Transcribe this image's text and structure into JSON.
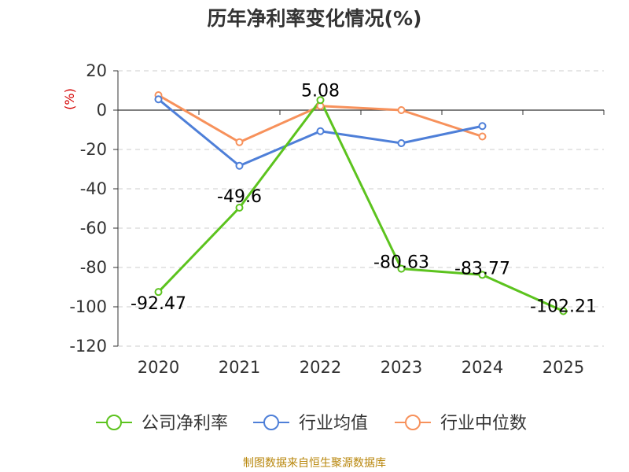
{
  "chart_data": {
    "type": "line",
    "title": "历年净利率变化情况(%)",
    "ylabel": "(%)",
    "xlabel": "",
    "ylim": [
      -120,
      20
    ],
    "yticks": [
      20,
      0,
      -20,
      -40,
      -60,
      -80,
      -100,
      -120
    ],
    "categories": [
      "2020",
      "2021",
      "2022",
      "2023",
      "2024",
      "2025"
    ],
    "grid": true,
    "legend_position": "bottom",
    "series": [
      {
        "name": "公司净利率",
        "color": "#5cc31e",
        "values": [
          -92.47,
          -49.6,
          5.08,
          -80.63,
          -83.77,
          -102.21
        ],
        "labels": [
          "-92.47",
          "-49.6",
          "5.08",
          "-80.63",
          "-83.77",
          "-102.21"
        ]
      },
      {
        "name": "行业均值",
        "color": "#4e7fd8",
        "values": [
          5.5,
          -28.3,
          -10.7,
          -16.8,
          -8.1,
          null
        ]
      },
      {
        "name": "行业中位数",
        "color": "#f7915b",
        "values": [
          7.6,
          -16.3,
          2.1,
          0.0,
          -13.4,
          null
        ]
      }
    ]
  },
  "footer": {
    "source": "制图数据来自恒生聚源数据库"
  }
}
